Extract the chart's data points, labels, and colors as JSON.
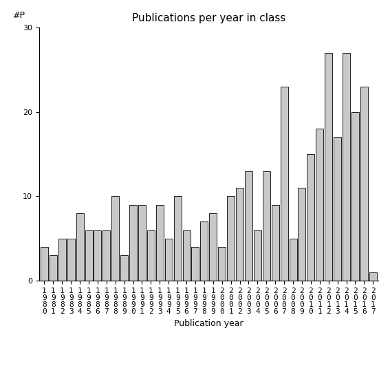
{
  "title": "Publications per year in class",
  "xlabel": "Publication year",
  "ylabel": "#P",
  "ylim": [
    0,
    30
  ],
  "yticks": [
    0,
    10,
    20,
    30
  ],
  "years": [
    1980,
    1981,
    1982,
    1983,
    1984,
    1985,
    1986,
    1987,
    1988,
    1989,
    1990,
    1991,
    1992,
    1993,
    1994,
    1995,
    1996,
    1997,
    1998,
    1999,
    2000,
    2001,
    2002,
    2003,
    2004,
    2005,
    2006,
    2007,
    2008,
    2009,
    2010,
    2011,
    2012,
    2013,
    2014,
    2015,
    2016,
    2017
  ],
  "values": [
    4,
    3,
    5,
    5,
    8,
    6,
    6,
    6,
    10,
    3,
    9,
    9,
    6,
    9,
    5,
    10,
    6,
    4,
    7,
    8,
    4,
    10,
    11,
    13,
    6,
    13,
    9,
    23,
    5,
    11,
    15,
    18,
    27,
    17,
    27,
    20,
    23,
    1
  ],
  "bar_color": "#c8c8c8",
  "bar_edgecolor": "#000000",
  "background_color": "#ffffff",
  "title_fontsize": 11,
  "axis_fontsize": 9,
  "tick_fontsize": 8
}
